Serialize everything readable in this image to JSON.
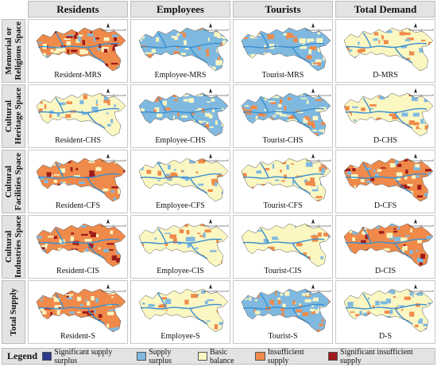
{
  "columns": [
    "Residents",
    "Employees",
    "Tourists",
    "Total Demand"
  ],
  "rows": [
    {
      "title": "Memorial or\nReligious Space",
      "labels": [
        "Resident-MRS",
        "Employee-MRS",
        "Tourist-MRS",
        "D-MRS"
      ],
      "dominant": [
        "insufficient",
        "surplus",
        "surplus",
        "mixed"
      ]
    },
    {
      "title": "Cultural\nHeritage Space",
      "labels": [
        "Resident-CHS",
        "Employee-CHS",
        "Tourist-CHS",
        "D-CHS"
      ],
      "dominant": [
        "basic",
        "surplus",
        "surplus",
        "basic"
      ]
    },
    {
      "title": "Cultural\nFacilities Space",
      "labels": [
        "Resident-CFS",
        "Employee-CFS",
        "Tourist-CFS",
        "D-CFS"
      ],
      "dominant": [
        "insufficient",
        "basic",
        "basic",
        "insufficient"
      ]
    },
    {
      "title": "Cultural\nIndustries Space",
      "labels": [
        "Resident-CIS",
        "Employee-CIS",
        "Tourist-CIS",
        "D-CIS"
      ],
      "dominant": [
        "insufficient",
        "mixed",
        "basic",
        "insufficient"
      ]
    },
    {
      "title": "Total Supply",
      "labels": [
        "Resident-S",
        "Employee-S",
        "Tourist-S",
        "D-S"
      ],
      "dominant": [
        "insufficient",
        "basic",
        "surplus",
        "basic"
      ]
    }
  ],
  "legend": {
    "title": "Legend",
    "items": [
      {
        "label": "Significant supply surplus",
        "color": "#2b3a8f"
      },
      {
        "label": "Supply surplus",
        "color": "#7fb9e0"
      },
      {
        "label": "Basic balance",
        "color": "#fbf7c2"
      },
      {
        "label": "Insufficient supply",
        "color": "#ef8a4a"
      },
      {
        "label": "Significant insufficient supply",
        "color": "#9e1a1a"
      }
    ]
  },
  "colors": {
    "river": "#3a8fd0",
    "border": "#555555"
  }
}
